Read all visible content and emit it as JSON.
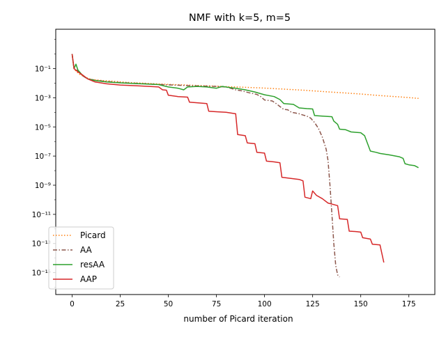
{
  "chart_data": {
    "type": "line",
    "title": "NMF with k=5, m=5",
    "xlabel": "number of Picard iteration",
    "ylabel": "",
    "xlim": [
      -8.5,
      188.5
    ],
    "ylim_log10": [
      -16.5,
      1.7
    ],
    "yscale": "log",
    "grid": false,
    "legend_position": "lower-left",
    "x_ticks": [
      0,
      25,
      50,
      75,
      100,
      125,
      150,
      175
    ],
    "x_tick_labels": [
      "0",
      "25",
      "50",
      "75",
      "100",
      "125",
      "150",
      "175"
    ],
    "y_ticks_log10": [
      -15,
      -13,
      -11,
      -9,
      -7,
      -5,
      -3,
      -1
    ],
    "y_tick_labels": [
      "10⁻¹⁵",
      "10⁻¹³",
      "10⁻¹¹",
      "10⁻⁹",
      "10⁻⁷",
      "10⁻⁵",
      "10⁻³",
      "10⁻¹"
    ],
    "series": [
      {
        "name": "Picard",
        "color": "#ff7f0e",
        "style": "dotted",
        "points": [
          [
            0,
            1.0
          ],
          [
            1,
            0.1
          ],
          [
            2,
            0.065
          ],
          [
            4,
            0.04
          ],
          [
            7,
            0.025
          ],
          [
            10,
            0.018
          ],
          [
            15,
            0.0155
          ],
          [
            20,
            0.014
          ],
          [
            30,
            0.011
          ],
          [
            40,
            0.0095
          ],
          [
            50,
            0.0083
          ],
          [
            60,
            0.0074
          ],
          [
            70,
            0.0066
          ],
          [
            80,
            0.0058
          ],
          [
            90,
            0.0052
          ],
          [
            100,
            0.0046
          ],
          [
            110,
            0.0039
          ],
          [
            120,
            0.0033
          ],
          [
            130,
            0.0027
          ],
          [
            140,
            0.0022
          ],
          [
            150,
            0.0018
          ],
          [
            160,
            0.0014
          ],
          [
            170,
            0.00115
          ],
          [
            180,
            0.0009
          ]
        ]
      },
      {
        "name": "AA",
        "color": "#8c564b",
        "style": "dashdot",
        "points": [
          [
            0,
            1.0
          ],
          [
            1,
            0.1
          ],
          [
            3,
            0.07
          ],
          [
            5,
            0.035
          ],
          [
            8,
            0.02
          ],
          [
            12,
            0.016
          ],
          [
            18,
            0.013
          ],
          [
            25,
            0.011
          ],
          [
            35,
            0.0095
          ],
          [
            45,
            0.0082
          ],
          [
            55,
            0.0072
          ],
          [
            65,
            0.0065
          ],
          [
            75,
            0.006
          ],
          [
            80,
            0.0055
          ],
          [
            83,
            0.0042
          ],
          [
            85,
            0.0035
          ],
          [
            88,
            0.003
          ],
          [
            92,
            0.0022
          ],
          [
            96,
            0.0017
          ],
          [
            98,
            0.0012
          ],
          [
            100,
            0.0007
          ],
          [
            102,
            0.00065
          ],
          [
            104,
            0.0006
          ],
          [
            106,
            0.0004
          ],
          [
            108,
            0.00025
          ],
          [
            110,
            0.00016
          ],
          [
            112,
            0.00015
          ],
          [
            114,
            0.0001
          ],
          [
            116,
            9e-05
          ],
          [
            118,
            8e-05
          ],
          [
            120,
            6.5e-05
          ],
          [
            122,
            5.5e-05
          ],
          [
            124,
            4e-05
          ],
          [
            126,
            2e-05
          ],
          [
            128,
            8e-06
          ],
          [
            130,
            2e-06
          ],
          [
            132,
            3e-07
          ],
          [
            133,
            5e-08
          ],
          [
            134,
            1e-09
          ],
          [
            135,
            1e-11
          ],
          [
            136,
            1e-13
          ],
          [
            137,
            3e-15
          ],
          [
            138,
            7e-16
          ],
          [
            139,
            5e-16
          ]
        ]
      },
      {
        "name": "resAA",
        "color": "#2ca02c",
        "style": "solid",
        "points": [
          [
            0,
            1.0
          ],
          [
            1,
            0.1
          ],
          [
            2,
            0.2
          ],
          [
            3,
            0.08
          ],
          [
            5,
            0.04
          ],
          [
            8,
            0.02
          ],
          [
            12,
            0.015
          ],
          [
            18,
            0.012
          ],
          [
            25,
            0.0105
          ],
          [
            35,
            0.0092
          ],
          [
            45,
            0.008
          ],
          [
            50,
            0.0055
          ],
          [
            55,
            0.0045
          ],
          [
            58,
            0.0035
          ],
          [
            60,
            0.0055
          ],
          [
            65,
            0.006
          ],
          [
            70,
            0.0055
          ],
          [
            75,
            0.0045
          ],
          [
            78,
            0.006
          ],
          [
            82,
            0.005
          ],
          [
            85,
            0.0045
          ],
          [
            90,
            0.0035
          ],
          [
            95,
            0.0025
          ],
          [
            100,
            0.0016
          ],
          [
            105,
            0.0012
          ],
          [
            108,
            0.00075
          ],
          [
            110,
            0.0004
          ],
          [
            115,
            0.00035
          ],
          [
            118,
            0.0002
          ],
          [
            122,
            0.00018
          ],
          [
            125,
            0.00017
          ],
          [
            126,
            6e-05
          ],
          [
            130,
            5.5e-05
          ],
          [
            135,
            5e-05
          ],
          [
            136,
            2.5e-05
          ],
          [
            138,
            1.5e-05
          ],
          [
            139,
            7e-06
          ],
          [
            142,
            6.5e-06
          ],
          [
            145,
            4.5e-06
          ],
          [
            150,
            4e-06
          ],
          [
            152,
            2.5e-06
          ],
          [
            155,
            2.2e-07
          ],
          [
            158,
            1.8e-07
          ],
          [
            160,
            1.5e-07
          ],
          [
            165,
            1.2e-07
          ],
          [
            170,
            9e-08
          ],
          [
            172,
            7e-08
          ],
          [
            173,
            3e-08
          ],
          [
            175,
            2.5e-08
          ],
          [
            178,
            2.2e-08
          ],
          [
            180,
            1.6e-08
          ]
        ]
      },
      {
        "name": "AAP",
        "color": "#d62728",
        "style": "solid",
        "points": [
          [
            0,
            1.0
          ],
          [
            1,
            0.1
          ],
          [
            3,
            0.06
          ],
          [
            5,
            0.04
          ],
          [
            8,
            0.02
          ],
          [
            12,
            0.012
          ],
          [
            18,
            0.009
          ],
          [
            25,
            0.0075
          ],
          [
            35,
            0.0065
          ],
          [
            45,
            0.0055
          ],
          [
            47,
            0.0035
          ],
          [
            49,
            0.0033
          ],
          [
            50,
            0.0015
          ],
          [
            55,
            0.0012
          ],
          [
            60,
            0.0011
          ],
          [
            61,
            0.0005
          ],
          [
            65,
            0.00045
          ],
          [
            70,
            0.0004
          ],
          [
            71,
            0.00012
          ],
          [
            75,
            0.00011
          ],
          [
            80,
            0.0001
          ],
          [
            85,
            8e-05
          ],
          [
            86,
            3e-06
          ],
          [
            90,
            2.5e-06
          ],
          [
            91,
            8e-07
          ],
          [
            95,
            7e-07
          ],
          [
            96,
            1.8e-07
          ],
          [
            100,
            1.6e-07
          ],
          [
            101,
            4.5e-08
          ],
          [
            105,
            4e-08
          ],
          [
            108,
            3.5e-08
          ],
          [
            109,
            3.5e-09
          ],
          [
            113,
            3e-09
          ],
          [
            118,
            2.5e-09
          ],
          [
            120,
            2e-09
          ],
          [
            121,
            1.5e-10
          ],
          [
            124,
            1.2e-10
          ],
          [
            125,
            4e-10
          ],
          [
            127,
            2e-10
          ],
          [
            130,
            1.2e-10
          ],
          [
            133,
            6e-11
          ],
          [
            138,
            4e-11
          ],
          [
            139,
            5e-12
          ],
          [
            143,
            4.5e-12
          ],
          [
            144,
            7e-13
          ],
          [
            148,
            6.5e-13
          ],
          [
            150,
            6e-13
          ],
          [
            151,
            2.5e-13
          ],
          [
            155,
            2e-13
          ],
          [
            156,
            9e-14
          ],
          [
            160,
            8e-14
          ],
          [
            162,
            5e-15
          ]
        ]
      }
    ]
  }
}
